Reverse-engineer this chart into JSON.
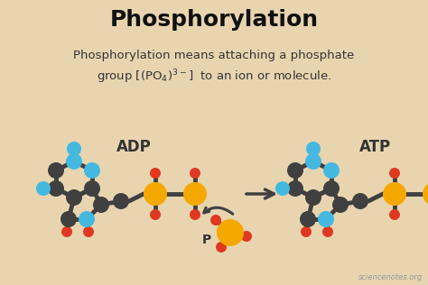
{
  "bg_color": "#e8d5b0",
  "title": "Phosphorylation",
  "title_fontsize": 18,
  "subtitle_line1": "Phosphorylation means attaching a phosphate",
  "subtitle_fontsize": 9.5,
  "text_color": "#333333",
  "dark_color": "#404040",
  "blue_color": "#45b8e0",
  "orange_color": "#f5a800",
  "red_color": "#e03820",
  "watermark": "sciencenotes.org",
  "adp_label": "ADP",
  "atp_label": "ATP",
  "p_label": "P"
}
